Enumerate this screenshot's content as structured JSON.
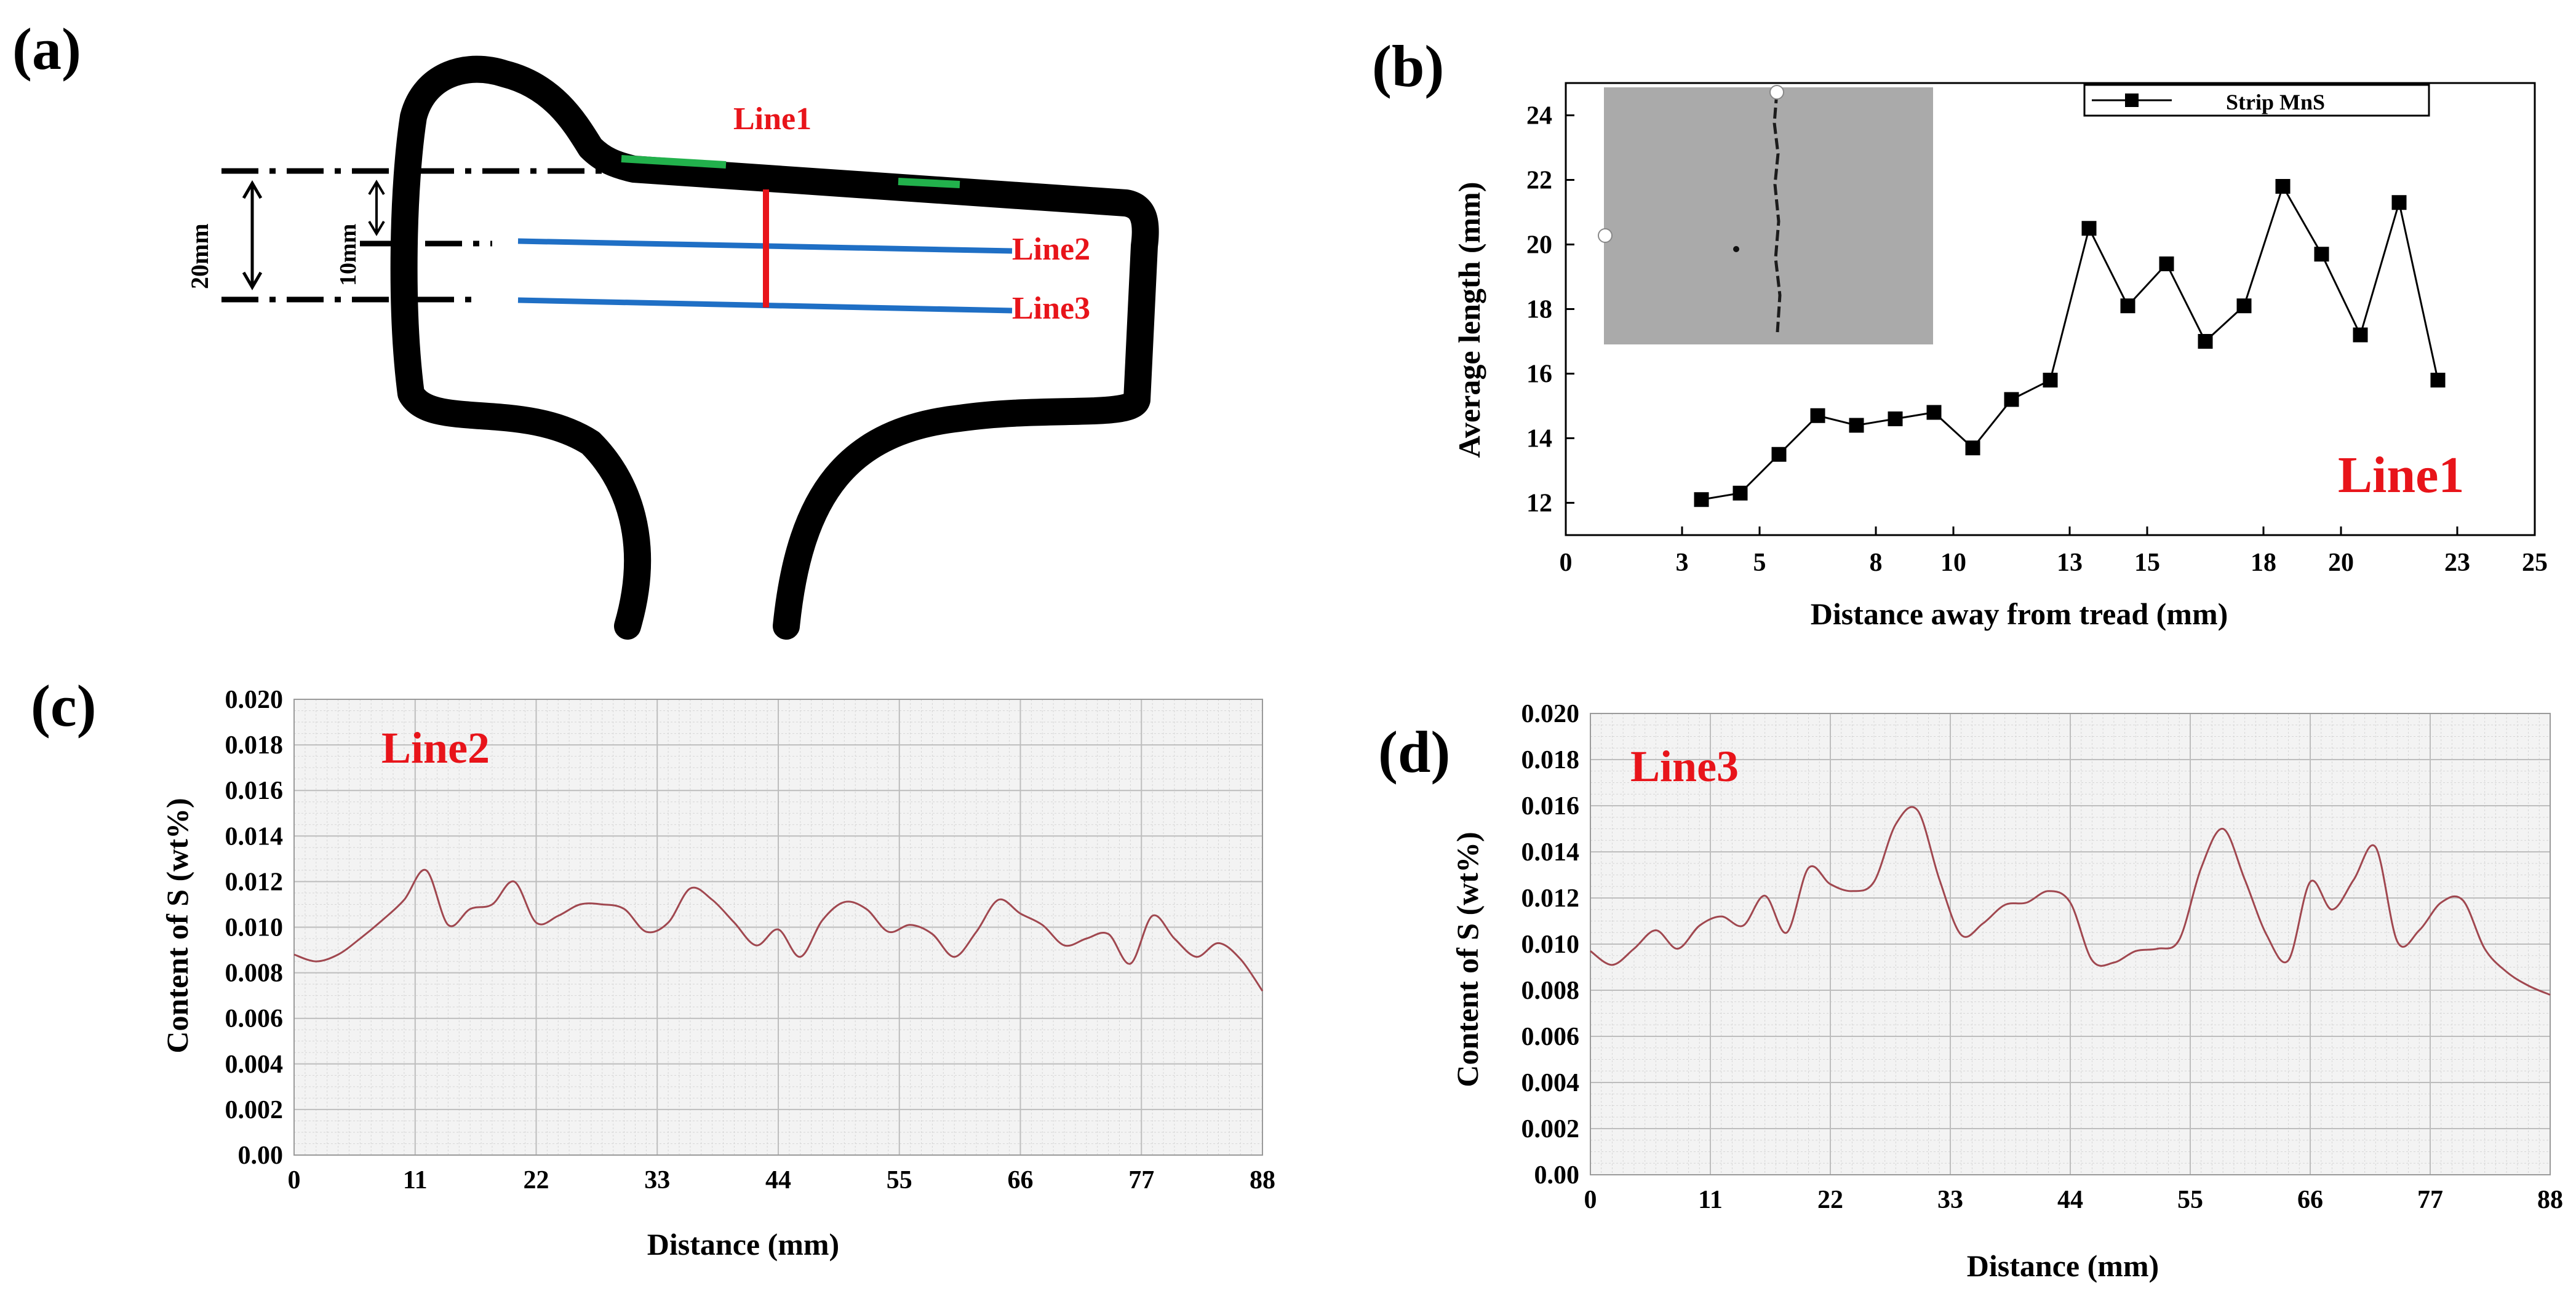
{
  "panels": {
    "a": "(a)",
    "b": "(b)",
    "c": "(c)",
    "d": "(d)"
  },
  "schematic": {
    "line1": "Line1",
    "line2": "Line2",
    "line3": "Line3",
    "dim_20": "20mm",
    "dim_10": "10mm"
  },
  "colors": {
    "red": "#e8141a",
    "blue": "#1f6fc5",
    "green": "#22b14c",
    "trace": "#a0474f",
    "grid": "#bdbdbd",
    "plot_bg": "#f3f3f3"
  },
  "chart_data": [
    {
      "id": "b",
      "type": "line",
      "title": "",
      "xlabel": "Distance away from tread (mm)",
      "ylabel": "Average length (mm)",
      "xlim": [
        0,
        25
      ],
      "ylim": [
        11,
        25
      ],
      "xticks": [
        0,
        3,
        5,
        8,
        10,
        13,
        15,
        18,
        20,
        23,
        25
      ],
      "yticks": [
        12,
        14,
        16,
        18,
        20,
        22,
        24
      ],
      "legend": "Strip MnS",
      "legend_position": "top-right",
      "annotation": "Line1",
      "series": [
        {
          "name": "Strip MnS",
          "x": [
            3.5,
            4.5,
            5.5,
            6.5,
            7.5,
            8.5,
            9.5,
            10.5,
            11.5,
            12.5,
            13.5,
            14.5,
            15.5,
            16.5,
            17.5,
            18.5,
            19.5,
            20.5,
            21.5,
            22.5
          ],
          "y": [
            12.1,
            12.3,
            13.5,
            14.7,
            14.4,
            14.6,
            14.8,
            13.7,
            15.2,
            15.8,
            20.5,
            18.1,
            19.4,
            17.0,
            18.1,
            21.8,
            19.7,
            17.2,
            21.3,
            15.8
          ]
        }
      ]
    },
    {
      "id": "c",
      "type": "line",
      "title": "",
      "xlabel": "Distance (mm)",
      "ylabel": "Content of S (wt%)",
      "xlim": [
        0,
        88
      ],
      "ylim": [
        0,
        0.02
      ],
      "xticks": [
        "0",
        "11",
        "22",
        "33",
        "44",
        "55",
        "66",
        "77",
        "88"
      ],
      "yticks": [
        "0.00",
        "0.002",
        "0.004",
        "0.006",
        "0.008",
        "0.010",
        "0.012",
        "0.014",
        "0.016",
        "0.018",
        "0.020"
      ],
      "annotation": "Line2",
      "grid": true,
      "series": [
        {
          "name": "Line2",
          "x": [
            0,
            2,
            4,
            6,
            8,
            10,
            12,
            14,
            16,
            18,
            20,
            22,
            24,
            26,
            28,
            30,
            32,
            34,
            36,
            38,
            40,
            42,
            44,
            46,
            48,
            50,
            52,
            54,
            56,
            58,
            60,
            62,
            64,
            66,
            68,
            70,
            72,
            74,
            76,
            78,
            80,
            82,
            84,
            86,
            88
          ],
          "y": [
            0.0088,
            0.0085,
            0.0088,
            0.0095,
            0.0103,
            0.0112,
            0.0125,
            0.0101,
            0.0108,
            0.011,
            0.012,
            0.0102,
            0.0105,
            0.011,
            0.011,
            0.0108,
            0.0098,
            0.0102,
            0.0117,
            0.0112,
            0.0102,
            0.0092,
            0.0099,
            0.0087,
            0.0103,
            0.0111,
            0.0108,
            0.0098,
            0.0101,
            0.0097,
            0.0087,
            0.0098,
            0.0112,
            0.0106,
            0.0101,
            0.0092,
            0.0095,
            0.0097,
            0.0084,
            0.0105,
            0.0095,
            0.0087,
            0.0093,
            0.0086,
            0.0072
          ]
        }
      ]
    },
    {
      "id": "d",
      "type": "line",
      "title": "",
      "xlabel": "Distance (mm)",
      "ylabel": "Content of S (wt%)",
      "xlim": [
        0,
        88
      ],
      "ylim": [
        0,
        0.02
      ],
      "xticks": [
        "0",
        "11",
        "22",
        "33",
        "44",
        "55",
        "66",
        "77",
        "88"
      ],
      "yticks": [
        "0.00",
        "0.002",
        "0.004",
        "0.006",
        "0.008",
        "0.010",
        "0.012",
        "0.014",
        "0.016",
        "0.018",
        "0.020"
      ],
      "annotation": "Line3",
      "grid": true,
      "series": [
        {
          "name": "Line3",
          "x": [
            0,
            2,
            4,
            6,
            8,
            10,
            12,
            14,
            16,
            18,
            20,
            22,
            24,
            26,
            28,
            30,
            32,
            34,
            36,
            38,
            40,
            42,
            44,
            46,
            48,
            50,
            52,
            54,
            56,
            58,
            60,
            62,
            64,
            66,
            68,
            70,
            72,
            74,
            76,
            78,
            80,
            82,
            84,
            86,
            88
          ],
          "y": [
            0.0097,
            0.0091,
            0.0098,
            0.0106,
            0.0098,
            0.0108,
            0.0112,
            0.0108,
            0.0121,
            0.0105,
            0.0133,
            0.0126,
            0.0123,
            0.0127,
            0.0152,
            0.0158,
            0.0128,
            0.0104,
            0.0109,
            0.0117,
            0.0118,
            0.0123,
            0.0118,
            0.0093,
            0.0092,
            0.0097,
            0.0098,
            0.0102,
            0.0133,
            0.015,
            0.0128,
            0.0104,
            0.0093,
            0.0127,
            0.0115,
            0.0128,
            0.0142,
            0.0101,
            0.0106,
            0.0118,
            0.0119,
            0.0098,
            0.0088,
            0.0082,
            0.0078
          ]
        }
      ]
    }
  ]
}
